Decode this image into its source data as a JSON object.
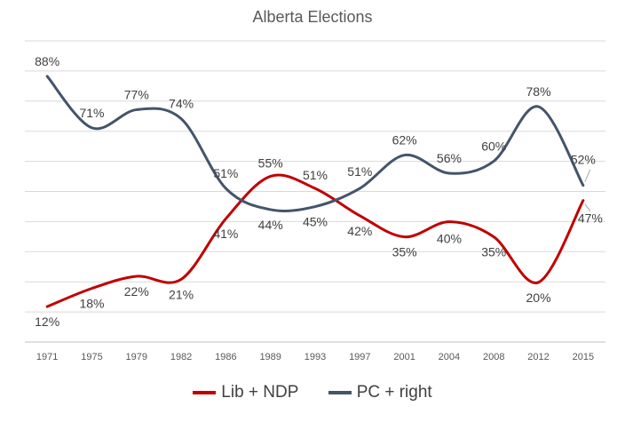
{
  "chart_data": {
    "type": "line",
    "title": "Alberta Elections",
    "xlabel": "",
    "ylabel": "",
    "ylim": [
      0,
      100
    ],
    "grid": true,
    "legend": "bottom",
    "categories": [
      "1971",
      "1975",
      "1979",
      "1982",
      "1986",
      "1989",
      "1993",
      "1997",
      "2001",
      "2004",
      "2008",
      "2012",
      "2015"
    ],
    "series": [
      {
        "name": "Lib + NDP",
        "color": "#C00000",
        "values": [
          12,
          18,
          22,
          21,
          41,
          55,
          51,
          42,
          35,
          40,
          35,
          20,
          47
        ],
        "labels": [
          "12%",
          "18%",
          "22%",
          "21%",
          "41%",
          "55%",
          "51%",
          "42%",
          "35%",
          "40%",
          "35%",
          "20%",
          "47%"
        ]
      },
      {
        "name": "PC + right",
        "color": "#44546A",
        "values": [
          88,
          71,
          77,
          74,
          51,
          44,
          45,
          51,
          62,
          56,
          60,
          78,
          52
        ],
        "labels": [
          "88%",
          "71%",
          "77%",
          "74%",
          "51%",
          "44%",
          "45%",
          "51%",
          "62%",
          "56%",
          "60%",
          "78%",
          "52%"
        ]
      }
    ]
  }
}
